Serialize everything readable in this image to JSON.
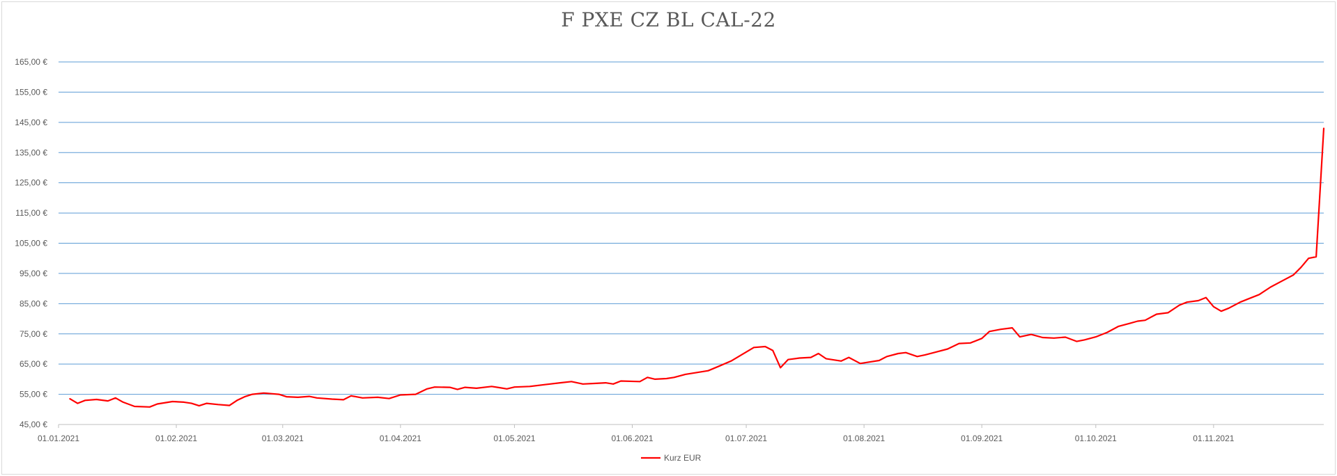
{
  "chart_data": {
    "type": "line",
    "title": "F PXE CZ BL CAL-22",
    "xlabel": "",
    "ylabel": "",
    "xlim": [
      "2021-01-01",
      "2021-11-30"
    ],
    "ylim": [
      45,
      165
    ],
    "grid": true,
    "legend_position": "bottom",
    "colors": {
      "series": "#ff0000",
      "grid": "#5b9bd5",
      "axis": "#bfbfbf",
      "text": "#595959"
    },
    "y_ticks": [
      {
        "value": 45,
        "label": "45,00 €"
      },
      {
        "value": 55,
        "label": "55,00 €"
      },
      {
        "value": 65,
        "label": "65,00 €"
      },
      {
        "value": 75,
        "label": "75,00 €"
      },
      {
        "value": 85,
        "label": "85,00 €"
      },
      {
        "value": 95,
        "label": "95,00 €"
      },
      {
        "value": 105,
        "label": "105,00 €"
      },
      {
        "value": 115,
        "label": "115,00 €"
      },
      {
        "value": 125,
        "label": "125,00 €"
      },
      {
        "value": 135,
        "label": "135,00 €"
      },
      {
        "value": 145,
        "label": "145,00 €"
      },
      {
        "value": 155,
        "label": "155,00 €"
      },
      {
        "value": 165,
        "label": "165,00 €"
      }
    ],
    "x_ticks": [
      {
        "date": "2021-01-01",
        "label": "01.01.2021"
      },
      {
        "date": "2021-02-01",
        "label": "01.02.2021"
      },
      {
        "date": "2021-03-01",
        "label": "01.03.2021"
      },
      {
        "date": "2021-04-01",
        "label": "01.04.2021"
      },
      {
        "date": "2021-05-01",
        "label": "01.05.2021"
      },
      {
        "date": "2021-06-01",
        "label": "01.06.2021"
      },
      {
        "date": "2021-07-01",
        "label": "01.07.2021"
      },
      {
        "date": "2021-08-01",
        "label": "01.08.2021"
      },
      {
        "date": "2021-09-01",
        "label": "01.09.2021"
      },
      {
        "date": "2021-10-01",
        "label": "01.10.2021"
      },
      {
        "date": "2021-11-01",
        "label": "01.11.2021"
      }
    ],
    "series": [
      {
        "name": "Kurz EUR",
        "points": [
          [
            "2021-01-04",
            53.5
          ],
          [
            "2021-01-06",
            52.0
          ],
          [
            "2021-01-08",
            53.0
          ],
          [
            "2021-01-11",
            53.3
          ],
          [
            "2021-01-14",
            52.8
          ],
          [
            "2021-01-16",
            53.8
          ],
          [
            "2021-01-18",
            52.4
          ],
          [
            "2021-01-21",
            51.0
          ],
          [
            "2021-01-25",
            50.8
          ],
          [
            "2021-01-27",
            51.8
          ],
          [
            "2021-01-31",
            52.6
          ],
          [
            "2021-02-03",
            52.4
          ],
          [
            "2021-02-05",
            52.0
          ],
          [
            "2021-02-07",
            51.2
          ],
          [
            "2021-02-09",
            52.0
          ],
          [
            "2021-02-12",
            51.6
          ],
          [
            "2021-02-15",
            51.3
          ],
          [
            "2021-02-17",
            53.0
          ],
          [
            "2021-02-19",
            54.2
          ],
          [
            "2021-02-21",
            55.0
          ],
          [
            "2021-02-24",
            55.4
          ],
          [
            "2021-02-26",
            55.2
          ],
          [
            "2021-02-28",
            55.0
          ],
          [
            "2021-03-02",
            54.2
          ],
          [
            "2021-03-05",
            54.0
          ],
          [
            "2021-03-08",
            54.3
          ],
          [
            "2021-03-10",
            53.8
          ],
          [
            "2021-03-14",
            53.4
          ],
          [
            "2021-03-17",
            53.2
          ],
          [
            "2021-03-19",
            54.5
          ],
          [
            "2021-03-22",
            53.8
          ],
          [
            "2021-03-26",
            54.0
          ],
          [
            "2021-03-29",
            53.6
          ],
          [
            "2021-04-01",
            54.8
          ],
          [
            "2021-04-05",
            55.0
          ],
          [
            "2021-04-08",
            56.8
          ],
          [
            "2021-04-10",
            57.4
          ],
          [
            "2021-04-14",
            57.3
          ],
          [
            "2021-04-16",
            56.6
          ],
          [
            "2021-04-18",
            57.3
          ],
          [
            "2021-04-21",
            57.0
          ],
          [
            "2021-04-25",
            57.6
          ],
          [
            "2021-04-27",
            57.2
          ],
          [
            "2021-04-29",
            56.8
          ],
          [
            "2021-05-01",
            57.4
          ],
          [
            "2021-05-05",
            57.6
          ],
          [
            "2021-05-09",
            58.2
          ],
          [
            "2021-05-13",
            58.8
          ],
          [
            "2021-05-16",
            59.2
          ],
          [
            "2021-05-19",
            58.4
          ],
          [
            "2021-05-22",
            58.6
          ],
          [
            "2021-05-25",
            58.8
          ],
          [
            "2021-05-27",
            58.4
          ],
          [
            "2021-05-29",
            59.4
          ],
          [
            "2021-06-03",
            59.2
          ],
          [
            "2021-06-05",
            60.6
          ],
          [
            "2021-06-07",
            60.0
          ],
          [
            "2021-06-10",
            60.2
          ],
          [
            "2021-06-12",
            60.6
          ],
          [
            "2021-06-15",
            61.6
          ],
          [
            "2021-06-18",
            62.2
          ],
          [
            "2021-06-21",
            62.8
          ],
          [
            "2021-06-24",
            64.4
          ],
          [
            "2021-06-27",
            66.0
          ],
          [
            "2021-06-29",
            67.5
          ],
          [
            "2021-07-01",
            69.0
          ],
          [
            "2021-07-03",
            70.5
          ],
          [
            "2021-07-06",
            70.8
          ],
          [
            "2021-07-08",
            69.5
          ],
          [
            "2021-07-10",
            63.8
          ],
          [
            "2021-07-12",
            66.5
          ],
          [
            "2021-07-15",
            67.0
          ],
          [
            "2021-07-18",
            67.2
          ],
          [
            "2021-07-20",
            68.5
          ],
          [
            "2021-07-22",
            66.8
          ],
          [
            "2021-07-26",
            66.0
          ],
          [
            "2021-07-28",
            67.2
          ],
          [
            "2021-07-31",
            65.2
          ],
          [
            "2021-08-02",
            65.6
          ],
          [
            "2021-08-05",
            66.2
          ],
          [
            "2021-08-07",
            67.5
          ],
          [
            "2021-08-10",
            68.5
          ],
          [
            "2021-08-12",
            68.8
          ],
          [
            "2021-08-15",
            67.5
          ],
          [
            "2021-08-17",
            68.0
          ],
          [
            "2021-08-20",
            69.0
          ],
          [
            "2021-08-23",
            70.0
          ],
          [
            "2021-08-26",
            71.8
          ],
          [
            "2021-08-29",
            72.0
          ],
          [
            "2021-09-01",
            73.5
          ],
          [
            "2021-09-03",
            75.8
          ],
          [
            "2021-09-06",
            76.5
          ],
          [
            "2021-09-09",
            77.0
          ],
          [
            "2021-09-11",
            74.0
          ],
          [
            "2021-09-14",
            74.8
          ],
          [
            "2021-09-17",
            73.8
          ],
          [
            "2021-09-20",
            73.6
          ],
          [
            "2021-09-23",
            73.9
          ],
          [
            "2021-09-26",
            72.5
          ],
          [
            "2021-09-28",
            73.0
          ],
          [
            "2021-10-01",
            74.0
          ],
          [
            "2021-10-04",
            75.5
          ],
          [
            "2021-10-07",
            77.5
          ],
          [
            "2021-10-10",
            78.5
          ],
          [
            "2021-10-12",
            79.2
          ],
          [
            "2021-10-14",
            79.5
          ],
          [
            "2021-10-17",
            81.5
          ],
          [
            "2021-10-20",
            82.0
          ],
          [
            "2021-10-23",
            84.5
          ],
          [
            "2021-10-25",
            85.5
          ],
          [
            "2021-10-28",
            86.0
          ],
          [
            "2021-10-30",
            87.0
          ],
          [
            "2021-11-01",
            84.0
          ],
          [
            "2021-11-03",
            82.5
          ],
          [
            "2021-11-05",
            83.5
          ],
          [
            "2021-11-08",
            85.5
          ],
          [
            "2021-11-10",
            86.5
          ],
          [
            "2021-11-13",
            88.0
          ],
          [
            "2021-11-16",
            90.5
          ],
          [
            "2021-11-19",
            92.5
          ],
          [
            "2021-11-22",
            94.5
          ],
          [
            "2021-11-24",
            97.0
          ],
          [
            "2021-11-26",
            100.0
          ],
          [
            "2021-11-28",
            100.5
          ],
          [
            "2021-11-30",
            143.0
          ]
        ]
      }
    ]
  }
}
